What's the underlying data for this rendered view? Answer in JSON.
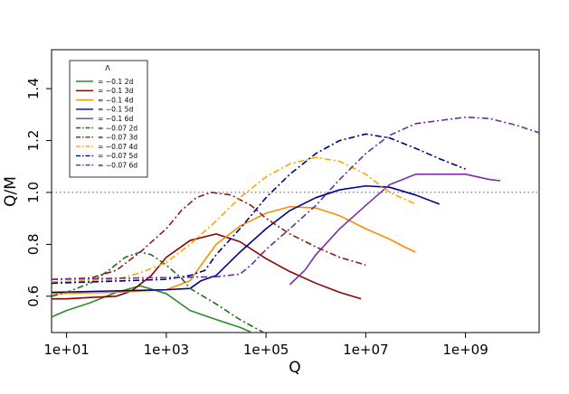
{
  "chart_data": {
    "type": "line",
    "title": "",
    "xlabel": "Q",
    "ylabel": "Q/M",
    "x_scale": "log10",
    "xlim": [
      5,
      30000000000.0
    ],
    "ylim": [
      0.46,
      1.55
    ],
    "x_ticks": [
      10,
      1000,
      100000,
      10000000,
      1000000000
    ],
    "x_tick_labels": [
      "1e+01",
      "1e+03",
      "1e+05",
      "1e+07",
      "1e+09"
    ],
    "y_ticks": [
      0.6,
      0.8,
      1.0,
      1.2,
      1.4
    ],
    "y_tick_labels": [
      "0.6",
      "0.8",
      "1.0",
      "1.2",
      "1.4"
    ],
    "grid": false,
    "reference_line": {
      "y": 1.0,
      "style": "dotted",
      "color": "#555555"
    },
    "legend": {
      "title": "Λ",
      "position": "top-left",
      "labels": [
        "= −0.1   2d",
        "= −0.1   3d",
        "= −0.1   4d",
        "= −0.1   5d",
        "= −0.1   6d",
        "= −0.07 2d",
        "= −0.07 3d",
        "= −0.07 4d",
        "= −0.07 5d",
        "= −0.07 6d"
      ]
    },
    "series": [
      {
        "color": "#2e8b2e",
        "dash": "solid",
        "points": [
          [
            5,
            0.52
          ],
          [
            10,
            0.545
          ],
          [
            30,
            0.575
          ],
          [
            100,
            0.615
          ],
          [
            300,
            0.64
          ],
          [
            1000,
            0.61
          ],
          [
            3000,
            0.545
          ],
          [
            10000,
            0.51
          ],
          [
            30000,
            0.48
          ],
          [
            60000,
            0.455
          ]
        ]
      },
      {
        "color": "#8b0000",
        "dash": "solid",
        "points": [
          [
            5,
            0.59
          ],
          [
            10,
            0.59
          ],
          [
            30,
            0.595
          ],
          [
            100,
            0.6
          ],
          [
            200,
            0.62
          ],
          [
            500,
            0.68
          ],
          [
            1000,
            0.75
          ],
          [
            3000,
            0.815
          ],
          [
            10000,
            0.84
          ],
          [
            30000,
            0.81
          ],
          [
            100000,
            0.745
          ],
          [
            300000,
            0.695
          ],
          [
            1000000,
            0.65
          ],
          [
            3000000,
            0.615
          ],
          [
            8000000,
            0.59
          ]
        ]
      },
      {
        "color": "#ff8c00",
        "dash": "solid",
        "points": [
          [
            5,
            0.61
          ],
          [
            100,
            0.615
          ],
          [
            1000,
            0.625
          ],
          [
            3000,
            0.66
          ],
          [
            5000,
            0.72
          ],
          [
            10000,
            0.8
          ],
          [
            30000,
            0.87
          ],
          [
            100000,
            0.92
          ],
          [
            300000,
            0.945
          ],
          [
            1000000,
            0.94
          ],
          [
            3000000,
            0.91
          ],
          [
            10000000,
            0.86
          ],
          [
            30000000,
            0.82
          ],
          [
            60000000,
            0.79
          ],
          [
            100000000,
            0.77
          ]
        ]
      },
      {
        "color": "#00008b",
        "dash": "solid",
        "points": [
          [
            5,
            0.615
          ],
          [
            1000,
            0.625
          ],
          [
            3000,
            0.63
          ],
          [
            5000,
            0.66
          ],
          [
            10000,
            0.68
          ],
          [
            30000,
            0.77
          ],
          [
            100000,
            0.86
          ],
          [
            300000,
            0.93
          ],
          [
            1000000,
            0.98
          ],
          [
            3000000,
            1.01
          ],
          [
            10000000,
            1.025
          ],
          [
            30000000,
            1.02
          ],
          [
            100000000,
            0.99
          ],
          [
            300000000,
            0.955
          ]
        ]
      },
      {
        "color": "#7b2fa6",
        "dash": "solid",
        "points": [
          [
            300000,
            0.645
          ],
          [
            600000,
            0.7
          ],
          [
            1000000,
            0.76
          ],
          [
            3000000,
            0.86
          ],
          [
            10000000,
            0.95
          ],
          [
            30000000,
            1.03
          ],
          [
            100000000,
            1.07
          ],
          [
            300000000,
            1.07
          ],
          [
            1000000000,
            1.07
          ],
          [
            3000000000,
            1.05
          ],
          [
            5000000000,
            1.045
          ]
        ]
      },
      {
        "color": "#1f6b1f",
        "dash": "dashdot",
        "points": [
          [
            5,
            0.6
          ],
          [
            10,
            0.615
          ],
          [
            30,
            0.65
          ],
          [
            70,
            0.7
          ],
          [
            150,
            0.75
          ],
          [
            300,
            0.77
          ],
          [
            500,
            0.76
          ],
          [
            1000,
            0.72
          ],
          [
            2000,
            0.67
          ],
          [
            3000,
            0.63
          ],
          [
            10000,
            0.57
          ],
          [
            30000,
            0.51
          ],
          [
            100000,
            0.455
          ]
        ]
      },
      {
        "color": "#8b1a1a",
        "dash": "dashdot",
        "points": [
          [
            5,
            0.665
          ],
          [
            30,
            0.67
          ],
          [
            100,
            0.7
          ],
          [
            300,
            0.77
          ],
          [
            1000,
            0.86
          ],
          [
            2000,
            0.93
          ],
          [
            4000,
            0.98
          ],
          [
            8000,
            1.0
          ],
          [
            20000,
            0.99
          ],
          [
            50000,
            0.95
          ],
          [
            100000,
            0.9
          ],
          [
            300000,
            0.84
          ],
          [
            1000000,
            0.79
          ],
          [
            3000000,
            0.75
          ],
          [
            10000000,
            0.72
          ]
        ]
      },
      {
        "color": "#ffa500",
        "dash": "dashdot",
        "points": [
          [
            5,
            0.655
          ],
          [
            100,
            0.665
          ],
          [
            300,
            0.69
          ],
          [
            1000,
            0.73
          ],
          [
            3000,
            0.8
          ],
          [
            10000,
            0.89
          ],
          [
            30000,
            0.98
          ],
          [
            100000,
            1.06
          ],
          [
            300000,
            1.11
          ],
          [
            1000000,
            1.135
          ],
          [
            3000000,
            1.12
          ],
          [
            10000000,
            1.07
          ],
          [
            30000000,
            1.0
          ],
          [
            100000000,
            0.955
          ]
        ]
      },
      {
        "color": "#00008b",
        "dash": "dashdot",
        "points": [
          [
            5,
            0.65
          ],
          [
            1000,
            0.665
          ],
          [
            3000,
            0.68
          ],
          [
            6000,
            0.7
          ],
          [
            10000,
            0.76
          ],
          [
            30000,
            0.86
          ],
          [
            100000,
            0.98
          ],
          [
            300000,
            1.07
          ],
          [
            1000000,
            1.15
          ],
          [
            3000000,
            1.2
          ],
          [
            10000000,
            1.225
          ],
          [
            30000000,
            1.21
          ],
          [
            100000000,
            1.17
          ],
          [
            300000000,
            1.13
          ],
          [
            1000000000,
            1.09
          ]
        ]
      },
      {
        "color": "#6a2da0",
        "dash": "dashdot",
        "points": [
          [
            5,
            0.665
          ],
          [
            10000,
            0.675
          ],
          [
            30000,
            0.685
          ],
          [
            50000,
            0.72
          ],
          [
            100000,
            0.78
          ],
          [
            300000,
            0.86
          ],
          [
            1000000,
            0.95
          ],
          [
            3000000,
            1.05
          ],
          [
            10000000,
            1.15
          ],
          [
            30000000,
            1.22
          ],
          [
            100000000,
            1.265
          ],
          [
            1000000000,
            1.29
          ],
          [
            3000000000,
            1.285
          ],
          [
            10000000000,
            1.26
          ],
          [
            30000000000,
            1.23
          ]
        ]
      }
    ]
  }
}
